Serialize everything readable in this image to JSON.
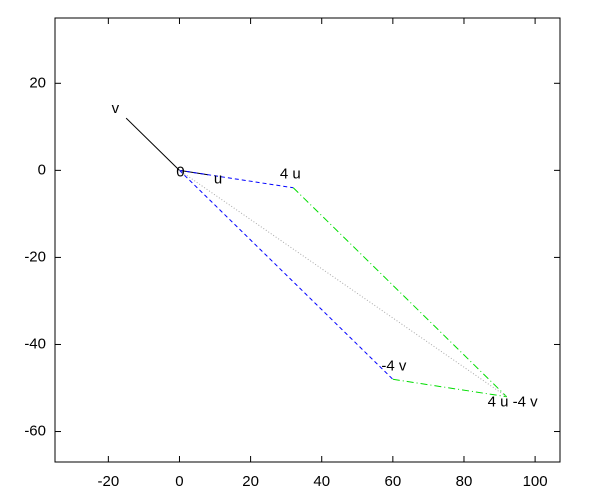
{
  "chart_data": {
    "type": "vector",
    "xlim": [
      -35,
      107
    ],
    "ylim": [
      -67,
      35
    ],
    "xticks": [
      -20,
      0,
      20,
      40,
      60,
      80,
      100
    ],
    "yticks": [
      -60,
      -40,
      -20,
      0,
      20
    ],
    "series": [
      {
        "color": "#000000",
        "style": "solid",
        "x": [
          0,
          8
        ],
        "y": [
          0,
          -1
        ]
      },
      {
        "color": "#000000",
        "style": "solid",
        "x": [
          0,
          -15
        ],
        "y": [
          0,
          12
        ]
      },
      {
        "color": "#0000ff",
        "style": "dashed",
        "x": [
          0,
          32
        ],
        "y": [
          0,
          -4
        ]
      },
      {
        "color": "#0000ff",
        "style": "dashed",
        "x": [
          0,
          60
        ],
        "y": [
          0,
          -48
        ]
      },
      {
        "color": "#00dd00",
        "style": "dashdot",
        "x": [
          32,
          92
        ],
        "y": [
          -4,
          -52
        ]
      },
      {
        "color": "#00dd00",
        "style": "dashdot",
        "x": [
          60,
          92
        ],
        "y": [
          -48,
          -52
        ]
      },
      {
        "color": "#aaaaaa",
        "style": "dotted",
        "x": [
          0,
          92
        ],
        "y": [
          0,
          -52
        ]
      }
    ],
    "annotations": [
      {
        "text": "0",
        "x": 0,
        "y": 0
      },
      {
        "text": "u",
        "x": 8,
        "y": -1
      },
      {
        "text": "v",
        "x": -15,
        "y": 12
      },
      {
        "text": "4 u",
        "x": 32,
        "y": -4
      },
      {
        "text": "-4 v",
        "x": 60,
        "y": -48
      },
      {
        "text": "4 u -4 v",
        "x": 92,
        "y": -52
      }
    ]
  }
}
